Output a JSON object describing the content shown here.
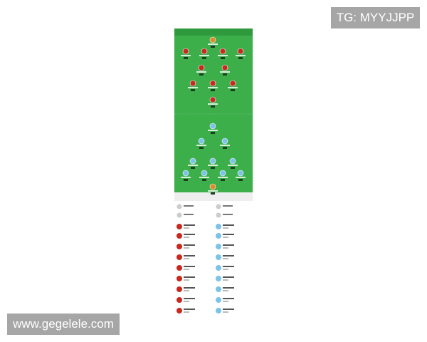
{
  "watermarks": {
    "top": "TG: MYYJJPP",
    "bottom": "www.gegelele.com"
  }
}
